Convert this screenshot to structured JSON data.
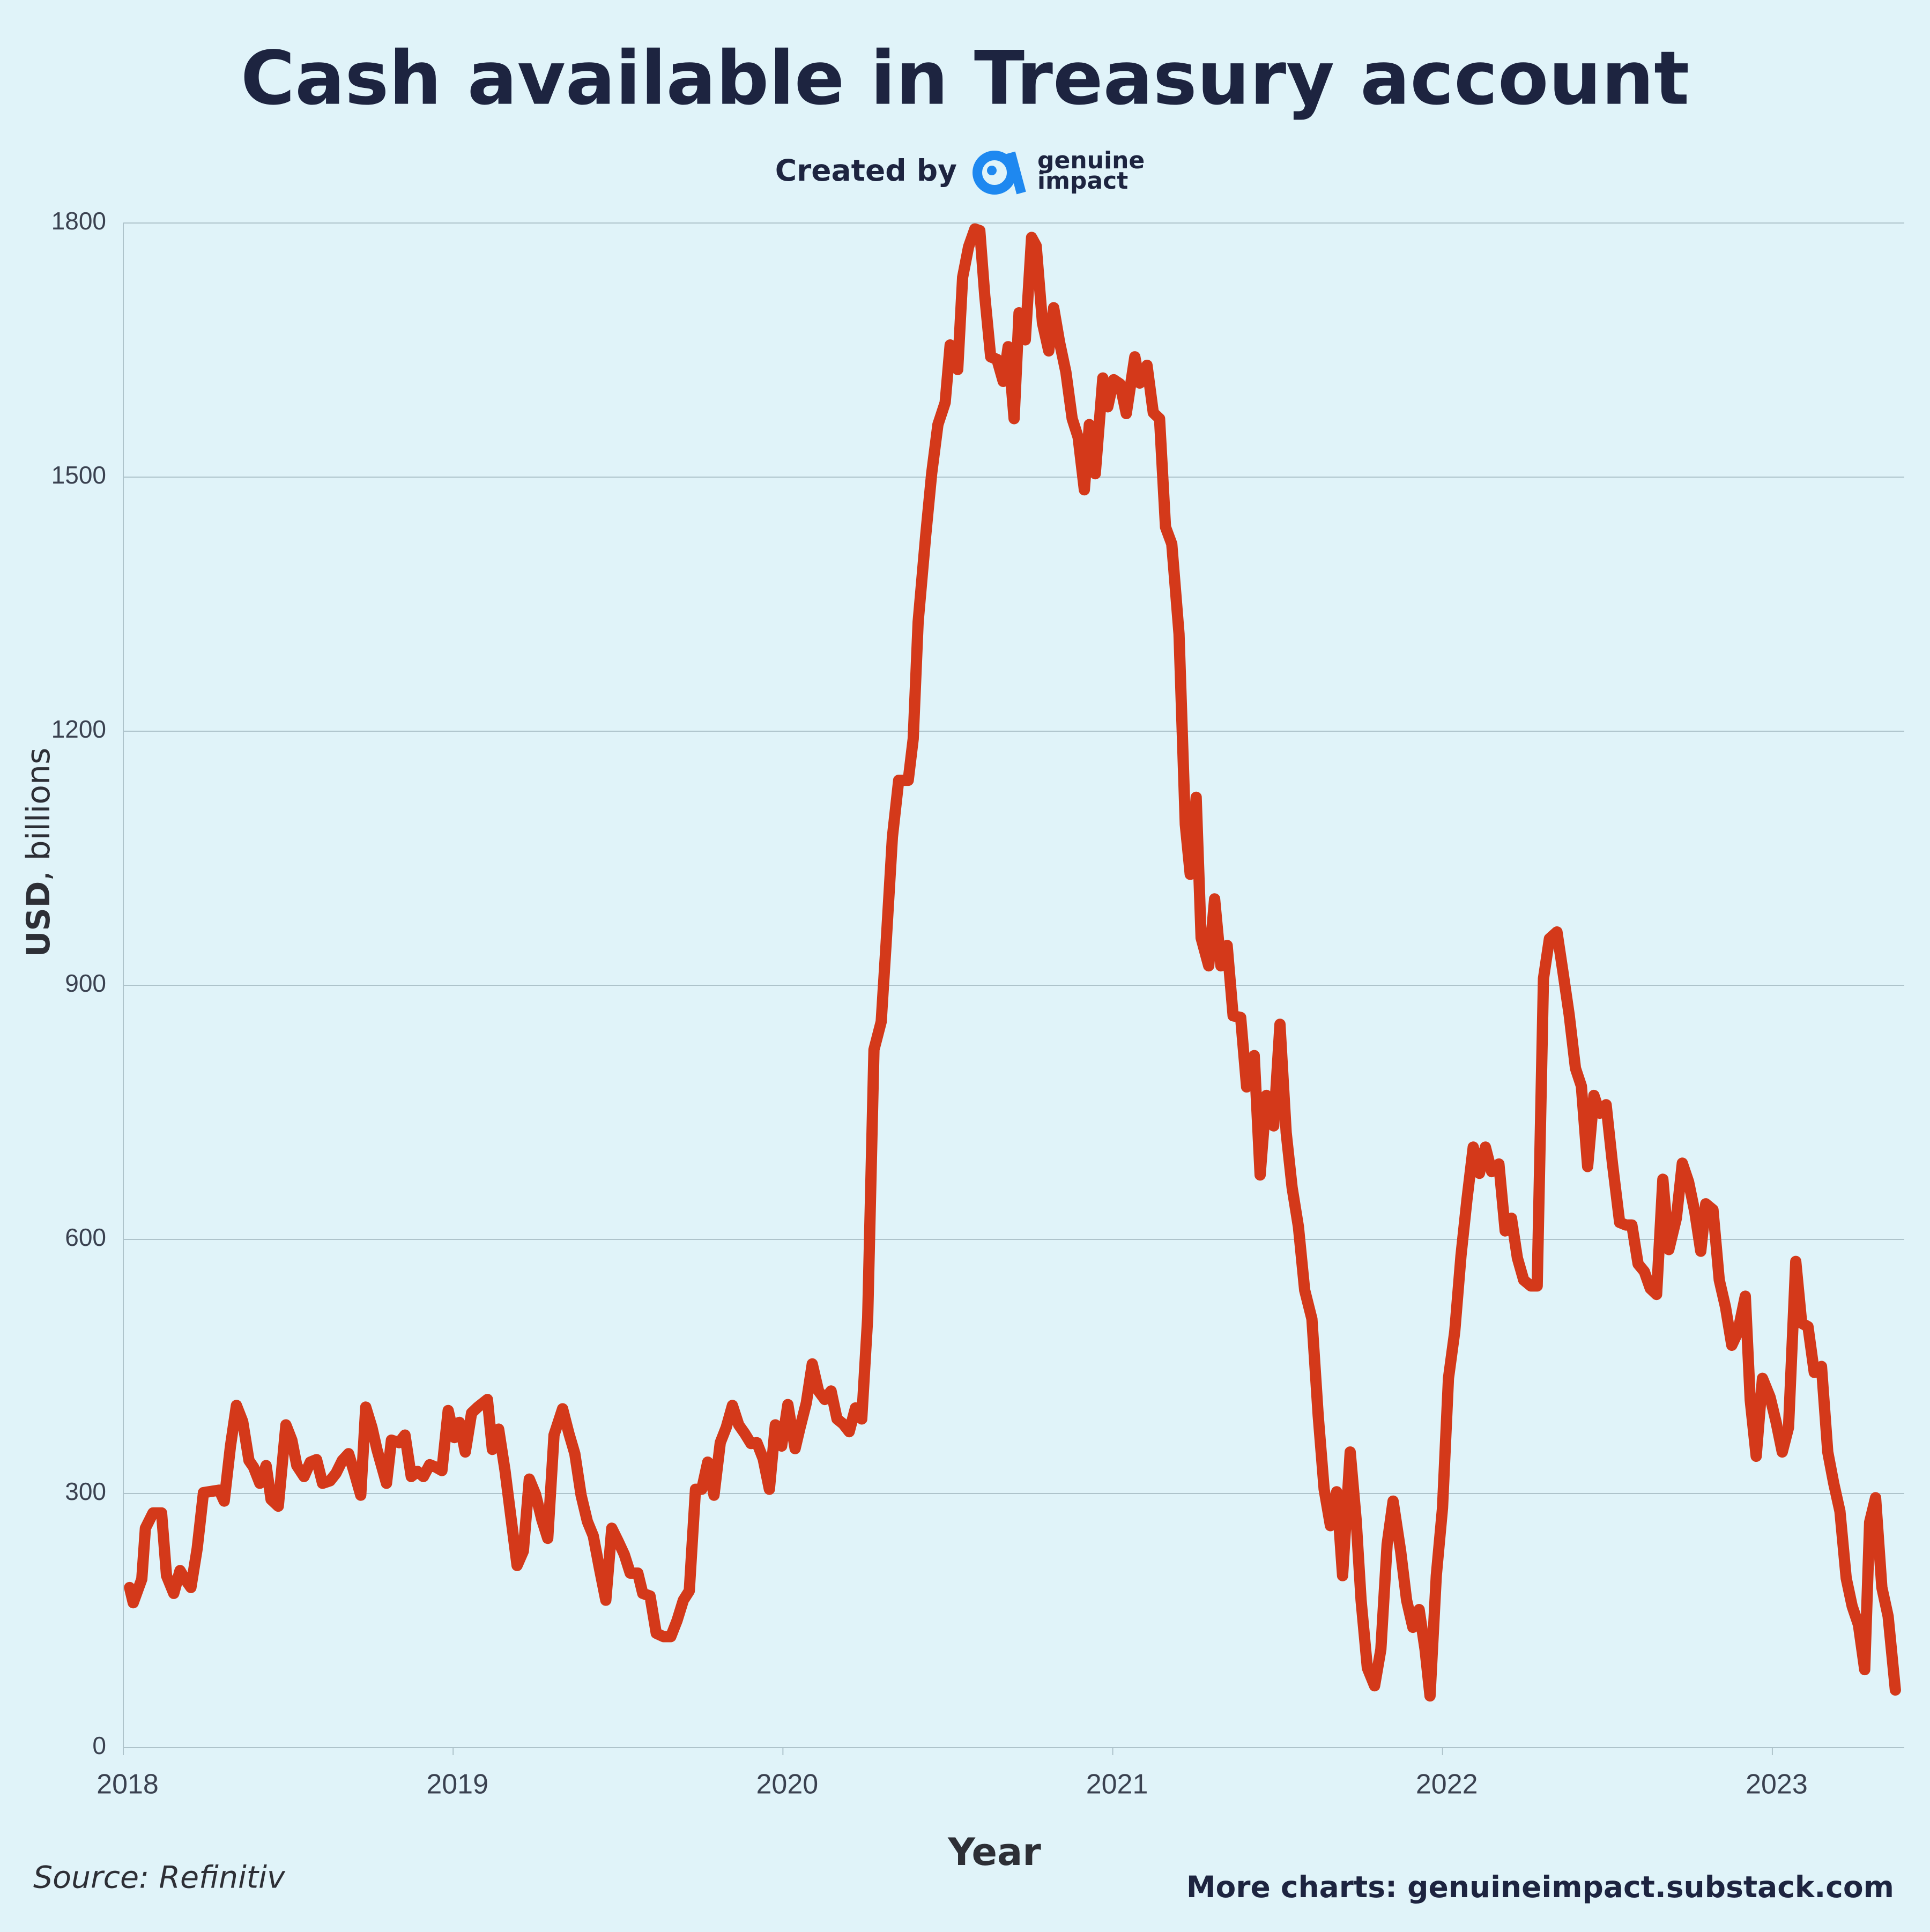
{
  "chart_data": {
    "type": "line",
    "title": "Cash available in Treasury account",
    "created_by": "Created by",
    "brand": [
      "genuine",
      "impact"
    ],
    "y_label": {
      "unit": "USD",
      "rest": ", billions"
    },
    "x_label": "Year",
    "source": "Source: Refinitiv",
    "footer": "More charts: genuineimpact.substack.com",
    "color": "#d4391a",
    "grid": true,
    "xlim": [
      2018,
      2023.4
    ],
    "xticks": [
      2018,
      2019,
      2020,
      2021,
      2022,
      2023
    ],
    "ylim": [
      0,
      1800
    ],
    "yticks": [
      0,
      300,
      600,
      900,
      1200,
      1500,
      1800
    ],
    "x": [
      2018.019,
      2018.03,
      2018.056,
      2018.067,
      2018.09,
      2018.116,
      2018.131,
      2018.153,
      2018.172,
      2018.187,
      2018.205,
      2018.224,
      2018.243,
      2018.291,
      2018.306,
      2018.325,
      2018.343,
      2018.362,
      2018.381,
      2018.395,
      2018.414,
      2018.433,
      2018.448,
      2018.47,
      2018.493,
      2018.511,
      2018.526,
      2018.548,
      2018.567,
      2018.586,
      2018.604,
      2018.627,
      2018.645,
      2018.664,
      2018.683,
      2018.701,
      2018.72,
      2018.735,
      2018.754,
      2018.769,
      2018.798,
      2018.813,
      2018.836,
      2018.854,
      2018.873,
      2018.892,
      2018.91,
      2018.929,
      2018.948,
      2018.966,
      2018.985,
      2019.004,
      2019.019,
      2019.037,
      2019.056,
      2019.075,
      2019.104,
      2019.119,
      2019.138,
      2019.157,
      2019.175,
      2019.194,
      2019.213,
      2019.231,
      2019.25,
      2019.269,
      2019.287,
      2019.306,
      2019.332,
      2019.351,
      2019.369,
      2019.388,
      2019.407,
      2019.425,
      2019.444,
      2019.463,
      2019.481,
      2019.5,
      2019.519,
      2019.537,
      2019.56,
      2019.575,
      2019.597,
      2019.616,
      2019.638,
      2019.66,
      2019.679,
      2019.698,
      2019.716,
      2019.735,
      2019.754,
      2019.772,
      2019.791,
      2019.81,
      2019.828,
      2019.847,
      2019.866,
      2019.884,
      2019.903,
      2019.921,
      2019.94,
      2019.959,
      2019.977,
      2019.996,
      2020.015,
      2020.037,
      2020.052,
      2020.071,
      2020.089,
      2020.108,
      2020.127,
      2020.146,
      2020.164,
      2020.183,
      2020.201,
      2020.22,
      2020.239,
      2020.257,
      2020.276,
      2020.298,
      2020.313,
      2020.332,
      2020.351,
      2020.38,
      2020.395,
      2020.41,
      2020.433,
      2020.451,
      2020.47,
      2020.492,
      2020.507,
      2020.53,
      2020.545,
      2020.563,
      2020.582,
      2020.597,
      2020.612,
      2020.63,
      2020.649,
      2020.668,
      2020.683,
      2020.701,
      2020.716,
      2020.735,
      2020.754,
      2020.768,
      2020.787,
      2020.806,
      2020.821,
      2020.839,
      2020.858,
      2020.877,
      2020.895,
      2020.914,
      2020.929,
      2020.947,
      2020.97,
      2020.985,
      2021.003,
      2021.022,
      2021.041,
      2021.067,
      2021.082,
      2021.104,
      2021.123,
      2021.142,
      2021.16,
      2021.179,
      2021.201,
      2021.22,
      2021.235,
      2021.253,
      2021.268,
      2021.291,
      2021.309,
      2021.328,
      2021.347,
      2021.365,
      2021.388,
      2021.406,
      2021.429,
      2021.447,
      2021.466,
      2021.488,
      2021.507,
      2021.526,
      2021.544,
      2021.563,
      2021.582,
      2021.604,
      2021.623,
      2021.641,
      2021.66,
      2021.679,
      2021.697,
      2021.72,
      2021.738,
      2021.753,
      2021.772,
      2021.794,
      2021.813,
      2021.832,
      2021.85,
      2021.873,
      2021.891,
      2021.91,
      2021.929,
      2021.947,
      2021.962,
      2021.981,
      2022.0,
      2022.018,
      2022.037,
      2022.056,
      2022.074,
      2022.093,
      2022.112,
      2022.13,
      2022.149,
      2022.171,
      2022.19,
      2022.209,
      2022.227,
      2022.246,
      2022.268,
      2022.287,
      2022.306,
      2022.324,
      2022.347,
      2022.365,
      2022.384,
      2022.403,
      2022.421,
      2022.44,
      2022.459,
      2022.477,
      2022.496,
      2022.515,
      2022.537,
      2022.556,
      2022.574,
      2022.593,
      2022.612,
      2022.63,
      2022.649,
      2022.668,
      2022.686,
      2022.709,
      2022.727,
      2022.746,
      2022.765,
      2022.783,
      2022.798,
      2022.82,
      2022.839,
      2022.858,
      2022.877,
      2022.895,
      2022.918,
      2022.933,
      2022.951,
      2022.97,
      2022.993,
      2023.011,
      2023.03,
      2023.049,
      2023.071,
      2023.089,
      2023.108,
      2023.127,
      2023.149,
      2023.168,
      2023.186,
      2023.205,
      2023.224,
      2023.242,
      2023.261,
      2023.28,
      2023.295,
      2023.313,
      2023.332,
      2023.351,
      2023.373
    ],
    "values": [
      189,
      171,
      199,
      259,
      277,
      277,
      203,
      182,
      209,
      199,
      189,
      235,
      301,
      304,
      291,
      356,
      404,
      385,
      339,
      331,
      312,
      333,
      293,
      285,
      381,
      363,
      333,
      320,
      337,
      340,
      312,
      315,
      324,
      339,
      347,
      324,
      298,
      402,
      378,
      352,
      312,
      363,
      360,
      369,
      320,
      326,
      320,
      334,
      331,
      327,
      398,
      366,
      384,
      349,
      395,
      402,
      411,
      352,
      376,
      328,
      273,
      215,
      232,
      317,
      299,
      269,
      247,
      369,
      400,
      371,
      347,
      298,
      267,
      250,
      211,
      174,
      259,
      244,
      228,
      206,
      206,
      182,
      179,
      135,
      131,
      131,
      150,
      174,
      185,
      305,
      305,
      337,
      298,
      360,
      378,
      404,
      381,
      371,
      359,
      360,
      341,
      305,
      381,
      356,
      405,
      353,
      378,
      407,
      453,
      421,
      411,
      421,
      388,
      382,
      373,
      401,
      388,
      508,
      824,
      857,
      950,
      1075,
      1142,
      1142,
      1191,
      1329,
      1431,
      1504,
      1562,
      1588,
      1656,
      1627,
      1736,
      1772,
      1793,
      1791,
      1714,
      1642,
      1639,
      1613,
      1654,
      1569,
      1694,
      1662,
      1783,
      1773,
      1682,
      1649,
      1700,
      1659,
      1624,
      1569,
      1547,
      1485,
      1562,
      1504,
      1617,
      1583,
      1615,
      1610,
      1575,
      1642,
      1611,
      1632,
      1576,
      1569,
      1441,
      1421,
      1315,
      1090,
      1031,
      1122,
      956,
      923,
      1002,
      923,
      947,
      864,
      862,
      780,
      817,
      676,
      770,
      734,
      854,
      726,
      661,
      615,
      540,
      506,
      392,
      305,
      262,
      302,
      203,
      349,
      269,
      174,
      94,
      73,
      116,
      240,
      291,
      232,
      174,
      142,
      163,
      116,
      61,
      203,
      283,
      436,
      491,
      581,
      647,
      709,
      678,
      709,
      680,
      689,
      610,
      625,
      578,
      552,
      545,
      545,
      908,
      955,
      963,
      916,
      865,
      802,
      781,
      686,
      770,
      749,
      759,
      690,
      620,
      617,
      617,
      571,
      562,
      542,
      535,
      671,
      588,
      625,
      690,
      668,
      632,
      586,
      642,
      635,
      552,
      520,
      475,
      490,
      533,
      410,
      344,
      436,
      414,
      385,
      349,
      378,
      574,
      501,
      497,
      443,
      450,
      349,
      312,
      279,
      200,
      167,
      145,
      92,
      266,
      295,
      189,
      155,
      68
    ]
  }
}
